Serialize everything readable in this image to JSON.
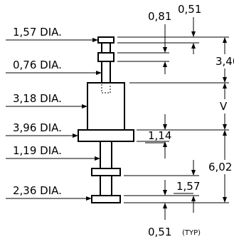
{
  "labels": {
    "d157": "1,57 DIA.",
    "d076": "0,76 DIA.",
    "d318": "3,18 DIA.",
    "d396": "3,96 DIA.",
    "d119": "1,19 DIA.",
    "d236": "2,36 DIA."
  },
  "dims": {
    "top_081": "0,81",
    "top_051": "0,51",
    "h340": "3,40",
    "v": "V",
    "h114": "1,14",
    "h602": "6,02",
    "h157": "1,57",
    "bottom_051": "0,51",
    "typ": "(TYP)"
  }
}
